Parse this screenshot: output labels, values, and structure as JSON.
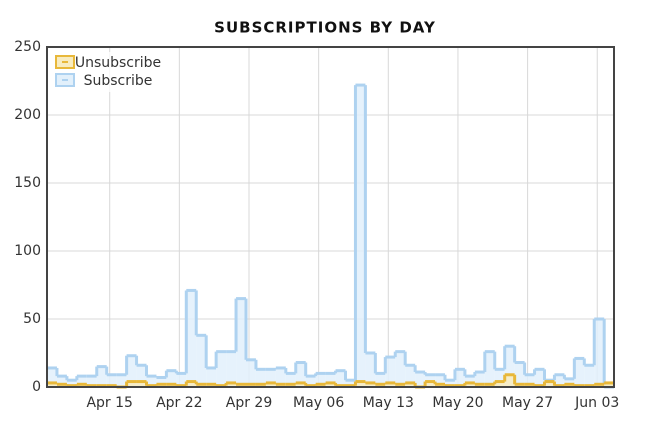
{
  "chart_data": {
    "type": "step-area",
    "title": "SUBSCRIPTIONS BY DAY",
    "categories": [
      null,
      null,
      null,
      null,
      null,
      null,
      "Apr 15",
      null,
      null,
      null,
      null,
      null,
      null,
      "Apr 22",
      null,
      null,
      null,
      null,
      null,
      null,
      "Apr 29",
      null,
      null,
      null,
      null,
      null,
      null,
      "May 06",
      null,
      null,
      null,
      null,
      null,
      null,
      "May 13",
      null,
      null,
      null,
      null,
      null,
      null,
      "May 20",
      null,
      null,
      null,
      null,
      null,
      null,
      "May 27",
      null,
      null,
      null,
      null,
      null,
      null,
      "Jun 03",
      null
    ],
    "series": [
      {
        "name": "Unsubscribe",
        "color": "#e8b83a",
        "fill": "#f8ecc0",
        "values": [
          3,
          2,
          1,
          2,
          1,
          1,
          1,
          0,
          4,
          4,
          1,
          2,
          2,
          1,
          4,
          2,
          2,
          1,
          3,
          2,
          2,
          2,
          3,
          2,
          2,
          3,
          1,
          2,
          3,
          1,
          1,
          4,
          3,
          2,
          3,
          2,
          3,
          0,
          4,
          2,
          1,
          1,
          3,
          2,
          2,
          4,
          9,
          2,
          2,
          1,
          4,
          1,
          2,
          1,
          1,
          2,
          3
        ]
      },
      {
        "name": "Subscribe",
        "color": "#aed2f0",
        "fill": "#e2f0fb",
        "values": [
          14,
          8,
          5,
          8,
          8,
          15,
          9,
          9,
          23,
          16,
          8,
          7,
          12,
          10,
          71,
          38,
          14,
          26,
          26,
          65,
          20,
          13,
          13,
          14,
          10,
          18,
          8,
          10,
          10,
          12,
          5,
          222,
          25,
          10,
          22,
          26,
          16,
          11,
          9,
          9,
          5,
          13,
          8,
          11,
          26,
          13,
          30,
          18,
          9,
          13,
          5,
          9,
          6,
          21,
          16,
          50,
          0
        ]
      }
    ],
    "ylim": [
      0,
      250
    ],
    "yticks": [
      0,
      50,
      100,
      150,
      200,
      250
    ],
    "grid": true
  }
}
